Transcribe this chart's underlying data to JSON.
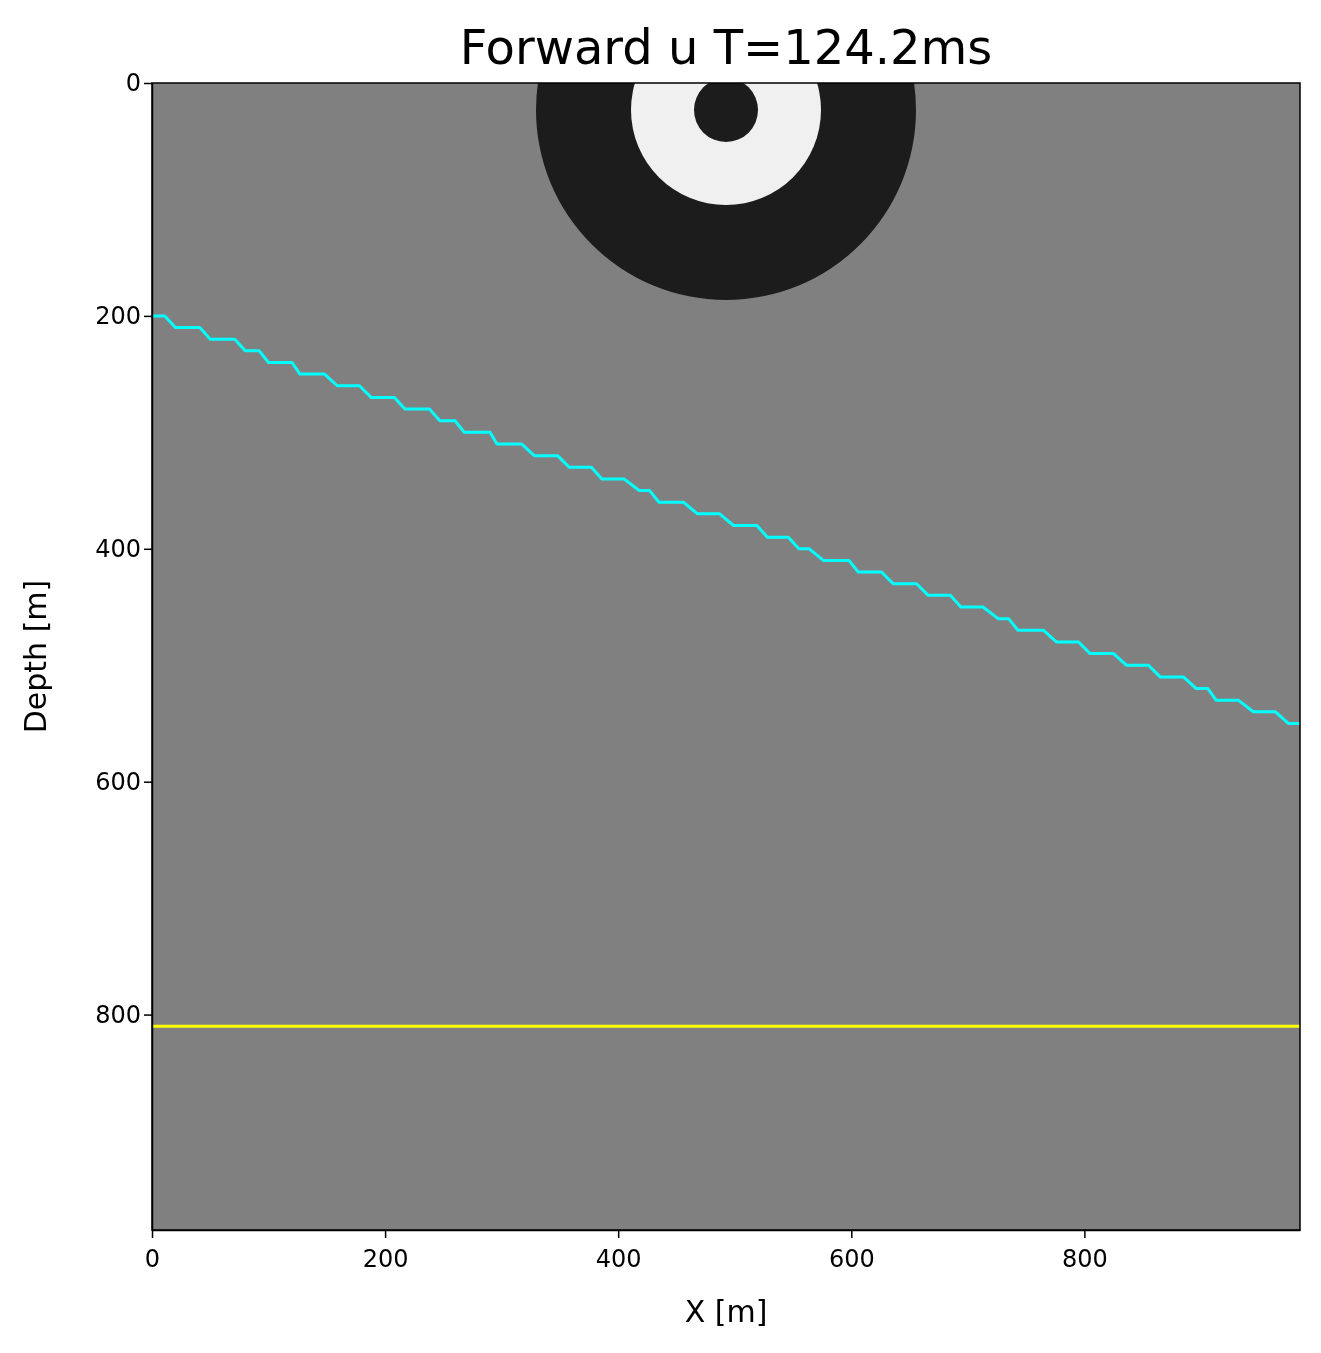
{
  "chart_data": {
    "type": "line",
    "title": "Forward u T=124.2ms",
    "xlabel": "X [m]",
    "ylabel": "Depth [m]",
    "xlim": [
      0,
      985
    ],
    "ylim": [
      985,
      0
    ],
    "xticks": [
      0,
      200,
      400,
      600,
      800
    ],
    "yticks": [
      0,
      200,
      400,
      600,
      800
    ],
    "grid": false,
    "series": [
      {
        "color": "#00ffff",
        "x": [
          0,
          11,
          20,
          41,
          50,
          71,
          80,
          92,
          100,
          120,
          127,
          148,
          159,
          178,
          188,
          208,
          217,
          238,
          247,
          260,
          268,
          290,
          296,
          317,
          328,
          348,
          358,
          377,
          386,
          405,
          418,
          427,
          435,
          456,
          468,
          487,
          499,
          519,
          528,
          546,
          555,
          564,
          576,
          598,
          606,
          626,
          636,
          656,
          666,
          685,
          694,
          713,
          726,
          735,
          743,
          765,
          776,
          795,
          805,
          825,
          836,
          855,
          865,
          885,
          896,
          906,
          913,
          932,
          945,
          964,
          975,
          985
        ],
        "values": [
          200,
          200,
          210,
          210,
          220,
          220,
          230,
          230,
          240,
          240,
          250,
          250,
          260,
          260,
          270,
          270,
          280,
          280,
          290,
          290,
          300,
          300,
          310,
          310,
          320,
          320,
          330,
          330,
          340,
          340,
          350,
          350,
          360,
          360,
          370,
          370,
          380,
          380,
          390,
          390,
          400,
          400,
          410,
          410,
          420,
          420,
          430,
          430,
          440,
          440,
          450,
          450,
          460,
          460,
          470,
          470,
          480,
          480,
          490,
          490,
          500,
          500,
          510,
          510,
          520,
          520,
          530,
          530,
          540,
          540,
          550,
          550
        ]
      }
    ],
    "ref_lines": [
      {
        "axis": "y",
        "value": 810,
        "color": "#ffff00"
      }
    ]
  }
}
